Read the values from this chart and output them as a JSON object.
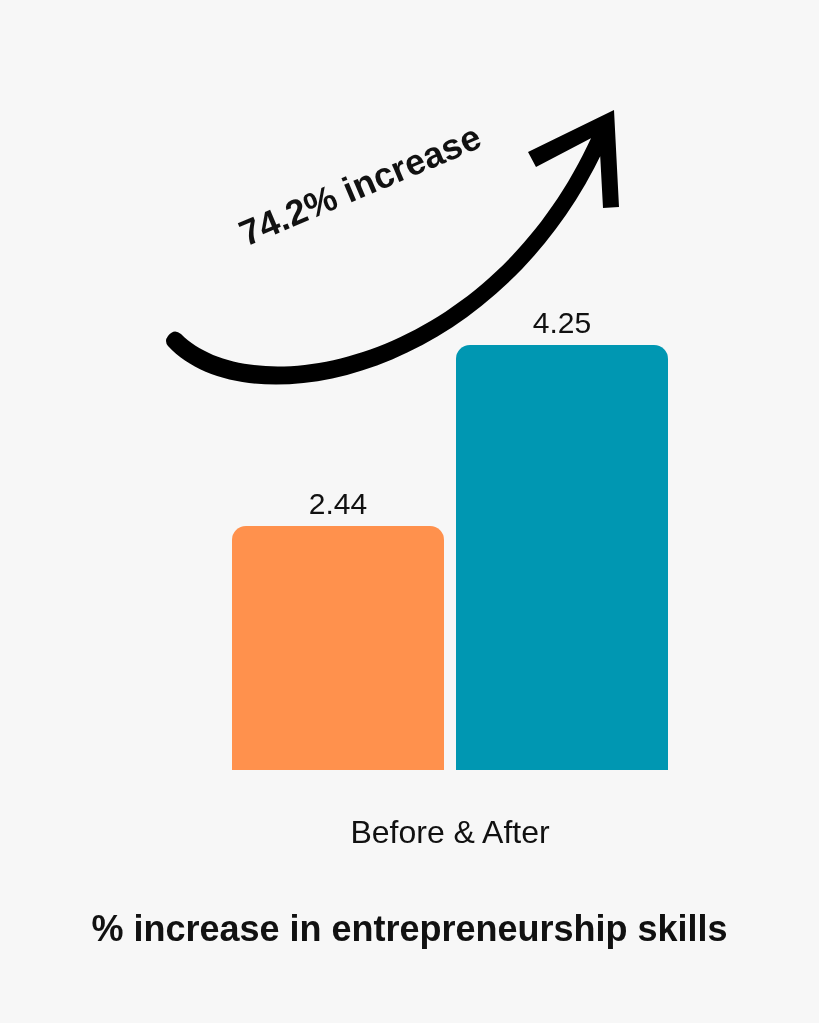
{
  "chart_data": {
    "type": "bar",
    "title": "% increase in entrepreneurship skills",
    "xlabel": "Before & After",
    "categories": [
      null,
      null
    ],
    "values": [
      2.44,
      4.25
    ],
    "colors": [
      "#ff914d",
      "#0097b2"
    ],
    "data_labels": true,
    "grid": false,
    "annotations": [
      "74.2% increase"
    ]
  }
}
